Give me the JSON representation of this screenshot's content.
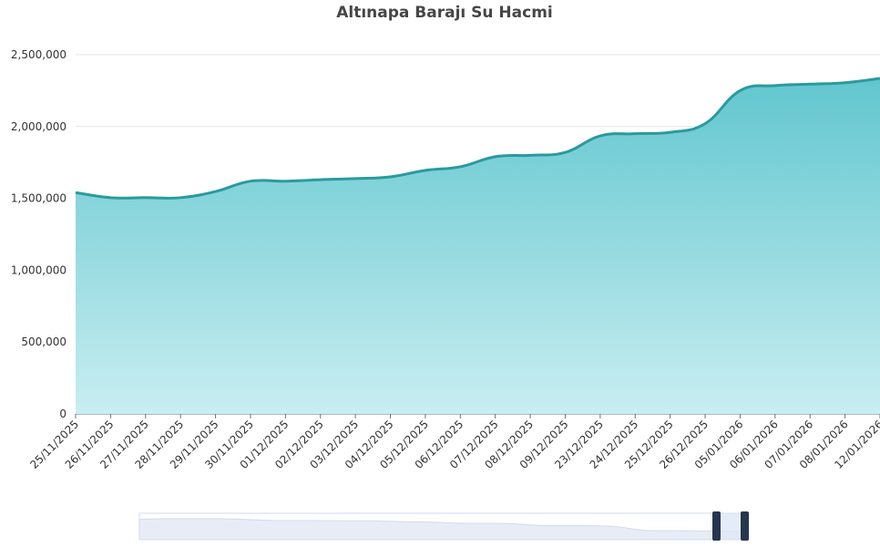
{
  "chart_data": {
    "type": "area",
    "title": "Altınapa Barajı Su Hacmi",
    "categories": [
      "25/11/2025",
      "26/11/2025",
      "27/11/2025",
      "28/11/2025",
      "29/11/2025",
      "30/11/2025",
      "01/12/2025",
      "02/12/2025",
      "03/12/2025",
      "04/12/2025",
      "05/12/2025",
      "06/12/2025",
      "07/12/2025",
      "08/12/2025",
      "09/12/2025",
      "23/12/2025",
      "24/12/2025",
      "25/12/2025",
      "26/12/2025",
      "05/01/2026",
      "06/01/2026",
      "07/01/2026",
      "08/01/2026",
      "12/01/2026"
    ],
    "values": [
      1540000,
      1505000,
      1505000,
      1505000,
      1548000,
      1620000,
      1620000,
      1630000,
      1638000,
      1650000,
      1695000,
      1720000,
      1790000,
      1800000,
      1820000,
      1935000,
      1950000,
      1960000,
      2020000,
      2250000,
      2285000,
      2295000,
      2305000,
      2335000
    ],
    "color": "#2a9a9e",
    "ylim": [
      0,
      2500000
    ],
    "yticks": [
      0,
      {
        "value": 500000,
        "label": "500,000"
      },
      {
        "value": 1000000,
        "label": "1,000,000"
      },
      {
        "value": 1500000,
        "label": "1,500,000"
      },
      {
        "value": 2000000,
        "label": "2,000,000"
      },
      {
        "value": 2500000,
        "label": "2,500,000"
      }
    ],
    "grid": true
  }
}
